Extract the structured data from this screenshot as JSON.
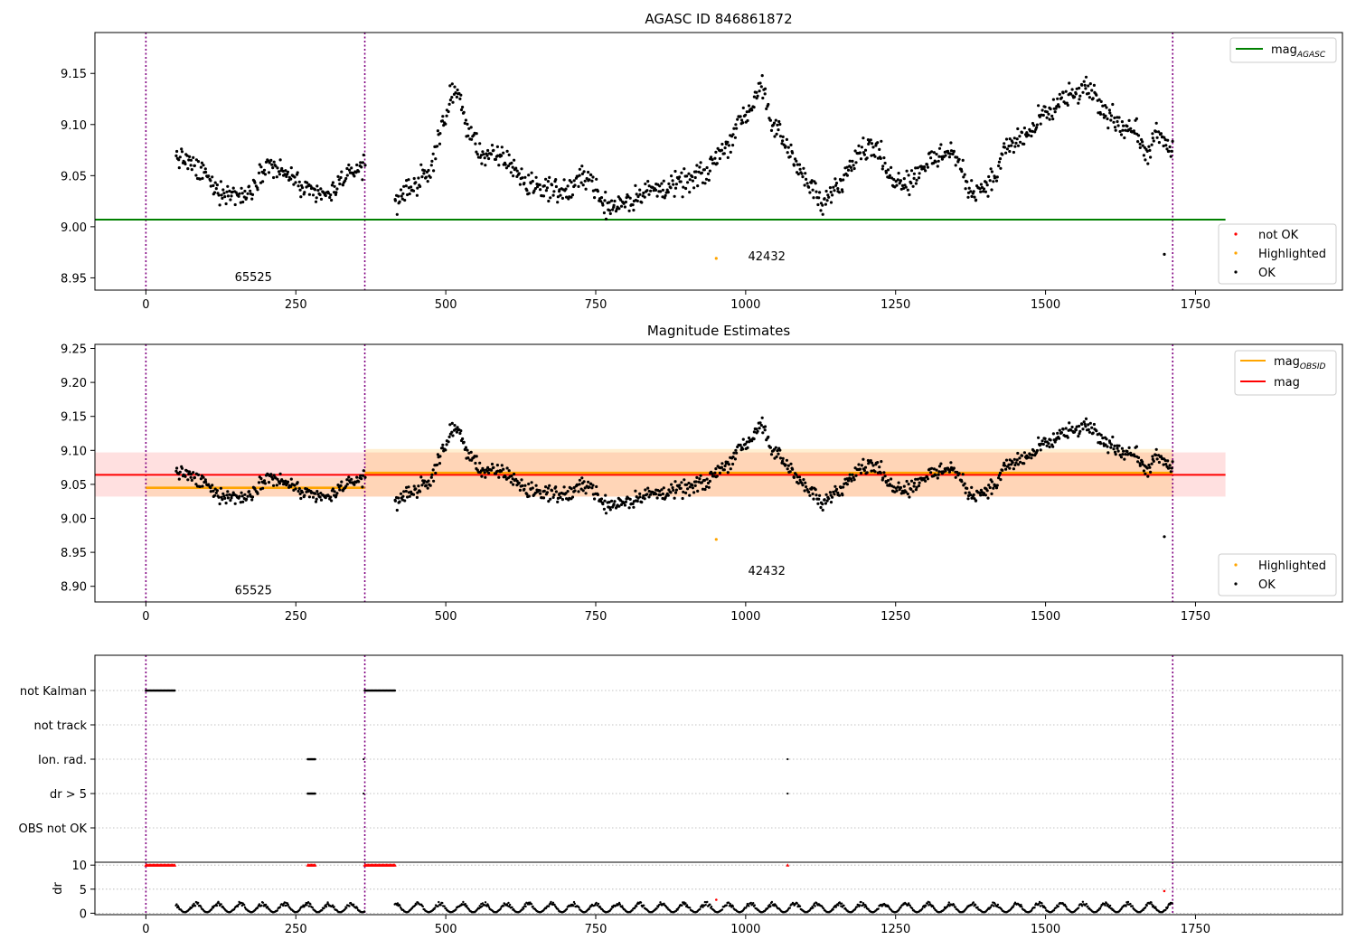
{
  "figure": {
    "background": "#ffffff"
  },
  "chart_data": [
    {
      "type": "scatter",
      "title": "AGASC ID 846861872",
      "xlabel": "",
      "ylabel": "",
      "xlim": [
        -85,
        1995
      ],
      "ylim": [
        8.938,
        9.19
      ],
      "xticks": [
        0,
        250,
        500,
        750,
        1000,
        1250,
        1500,
        1750
      ],
      "yticks": [
        8.95,
        9.0,
        9.05,
        9.1,
        9.15
      ],
      "vlines": [
        0,
        365,
        1712
      ],
      "hlines": [
        {
          "name": "mag_AGASC",
          "label_main": "mag",
          "label_sub": "AGASC",
          "y": 9.007,
          "x": [
            -85,
            1800
          ],
          "color": "#008000"
        }
      ],
      "annotations": [
        {
          "text": "65525",
          "x": 148,
          "y": 8.947
        },
        {
          "text": "42432",
          "x": 1004,
          "y": 8.967
        }
      ],
      "legends": [
        {
          "loc": "upper right",
          "entries": [
            {
              "kind": "line",
              "label_main": "mag",
              "label_sub": "AGASC",
              "color": "#008000"
            }
          ]
        },
        {
          "loc": "lower right",
          "entries": [
            {
              "kind": "dot",
              "label": "not OK",
              "color": "#ff0000"
            },
            {
              "kind": "dot",
              "label": "Highlighted",
              "color": "#ffa500"
            },
            {
              "kind": "dot",
              "label": "OK",
              "color": "#000000"
            }
          ]
        }
      ],
      "series": [
        {
          "name": "OK",
          "color": "#000000",
          "segments": [
            {
              "x": [
                50,
                365
              ],
              "knots": [
                [
                  50,
                  9.07
                ],
                [
                  90,
                  9.055
                ],
                [
                  120,
                  9.035
                ],
                [
                  160,
                  9.03
                ],
                [
                  205,
                  9.06
                ],
                [
                  240,
                  9.05
                ],
                [
                  265,
                  9.035
                ],
                [
                  300,
                  9.03
                ],
                [
                  335,
                  9.05
                ],
                [
                  365,
                  9.06
                ]
              ],
              "noise": 0.008,
              "n": 220
            },
            {
              "x": [
                415,
                1712
              ],
              "knots": [
                [
                  415,
                  9.025
                ],
                [
                  445,
                  9.04
                ],
                [
                  470,
                  9.05
                ],
                [
                  495,
                  9.1
                ],
                [
                  515,
                  9.135
                ],
                [
                  540,
                  9.09
                ],
                [
                  565,
                  9.07
                ],
                [
                  600,
                  9.065
                ],
                [
                  640,
                  9.04
                ],
                [
                  700,
                  9.035
                ],
                [
                  735,
                  9.05
                ],
                [
                  770,
                  9.02
                ],
                [
                  800,
                  9.025
                ],
                [
                  840,
                  9.035
                ],
                [
                  880,
                  9.04
                ],
                [
                  930,
                  9.05
                ],
                [
                  960,
                  9.075
                ],
                [
                  1000,
                  9.11
                ],
                [
                  1025,
                  9.135
                ],
                [
                  1045,
                  9.1
                ],
                [
                  1075,
                  9.075
                ],
                [
                  1100,
                  9.045
                ],
                [
                  1130,
                  9.02
                ],
                [
                  1150,
                  9.04
                ],
                [
                  1190,
                  9.075
                ],
                [
                  1215,
                  9.08
                ],
                [
                  1240,
                  9.05
                ],
                [
                  1270,
                  9.045
                ],
                [
                  1310,
                  9.065
                ],
                [
                  1340,
                  9.075
                ],
                [
                  1380,
                  9.035
                ],
                [
                  1410,
                  9.045
                ],
                [
                  1440,
                  9.08
                ],
                [
                  1470,
                  9.09
                ],
                [
                  1500,
                  9.11
                ],
                [
                  1535,
                  9.125
                ],
                [
                  1570,
                  9.135
                ],
                [
                  1600,
                  9.11
                ],
                [
                  1630,
                  9.1
                ],
                [
                  1650,
                  9.095
                ],
                [
                  1665,
                  9.07
                ],
                [
                  1690,
                  9.09
                ],
                [
                  1712,
                  9.07
                ]
              ],
              "noise": 0.009,
              "n": 920
            }
          ],
          "extra": [
            [
              1698,
              8.973
            ]
          ]
        },
        {
          "name": "Highlighted",
          "color": "#ffa500",
          "points": [
            [
              951,
              8.969
            ]
          ]
        }
      ]
    },
    {
      "type": "scatter",
      "title": "Magnitude Estimates",
      "xlabel": "",
      "ylabel": "",
      "xlim": [
        -85,
        1995
      ],
      "ylim": [
        8.877,
        9.256
      ],
      "xticks": [
        0,
        250,
        500,
        750,
        1000,
        1250,
        1500,
        1750
      ],
      "yticks": [
        8.9,
        8.95,
        9.0,
        9.05,
        9.1,
        9.15,
        9.2,
        9.25
      ],
      "vlines": [
        0,
        365,
        1712
      ],
      "hlines": [
        {
          "name": "mag",
          "label_main": "mag",
          "y": 9.064,
          "x": [
            -85,
            1800
          ],
          "color": "#ff0000",
          "band": [
            9.032,
            9.097
          ],
          "band_color": "#ff0000",
          "band_opacity": 0.12
        },
        {
          "name": "mag_OBSID_65525",
          "y": 9.045,
          "x": [
            0,
            365
          ],
          "color": "#ffa500",
          "band": [
            9.032,
            9.06
          ],
          "band_color": "#ffa500",
          "band_opacity": 0.15
        },
        {
          "name": "mag_OBSID_42432",
          "y": 9.067,
          "x": [
            365,
            1712
          ],
          "color": "#ffa500",
          "band": [
            9.032,
            9.102
          ],
          "band_color": "#ffa500",
          "band_opacity": 0.18
        }
      ],
      "annotations": [
        {
          "text": "65525",
          "x": 148,
          "y": 8.888
        },
        {
          "text": "42432",
          "x": 1004,
          "y": 8.917
        }
      ],
      "legends": [
        {
          "loc": "upper right",
          "entries": [
            {
              "kind": "line",
              "label_main": "mag",
              "label_sub": "OBSID",
              "color": "#ffa500"
            },
            {
              "kind": "line",
              "label_main": "mag",
              "label_sub": "",
              "color": "#ff0000"
            }
          ]
        },
        {
          "loc": "lower right",
          "entries": [
            {
              "kind": "dot",
              "label": "Highlighted",
              "color": "#ffa500"
            },
            {
              "kind": "dot",
              "label": "OK",
              "color": "#000000"
            }
          ]
        }
      ],
      "series": [
        {
          "name": "OK",
          "color": "#000000",
          "same_as_panel": 0,
          "extra": [
            [
              1698,
              8.973
            ]
          ]
        },
        {
          "name": "Highlighted",
          "color": "#ffa500",
          "points": [
            [
              951,
              8.969
            ]
          ]
        }
      ]
    },
    {
      "type": "scatter",
      "title": "",
      "xlabel": "",
      "ylabel": "",
      "xlim": [
        -85,
        1995
      ],
      "categories": [
        "not Kalman",
        "not track",
        "Ion. rad.",
        "dr > 5",
        "OBS not OK"
      ],
      "xticks": [
        0,
        250,
        500,
        750,
        1000,
        1250,
        1500,
        1750
      ],
      "vlines": [
        0,
        365,
        1712
      ],
      "grid": "horizontal dotted",
      "flag_ranges": [
        {
          "category": "not Kalman",
          "ranges": [
            [
              0,
              48
            ],
            [
              365,
              415
            ]
          ]
        },
        {
          "category": "Ion. rad.",
          "ranges": [
            [
              270,
              282
            ]
          ],
          "points": [
            363,
            1070
          ]
        },
        {
          "category": "dr > 5",
          "ranges": [
            [
              270,
              282
            ]
          ],
          "points": [
            363,
            1070
          ]
        }
      ]
    },
    {
      "type": "scatter",
      "title": "",
      "xlabel": "",
      "ylabel": "dr",
      "xlim": [
        -85,
        1995
      ],
      "ylim": [
        -0.3,
        10.6
      ],
      "yticks": [
        0,
        5,
        10
      ],
      "xticks": [
        0,
        250,
        500,
        750,
        1000,
        1250,
        1500,
        1750
      ],
      "vlines": [
        0,
        365,
        1712
      ],
      "grid": "horizontal dotted",
      "capped_value": 10,
      "capped_ranges": [
        [
          0,
          48
        ],
        [
          270,
          282
        ],
        [
          365,
          415
        ]
      ],
      "capped_points": [
        1070
      ],
      "red_points": [
        [
          951,
          2.8
        ],
        [
          1698,
          4.6
        ]
      ],
      "series": [
        {
          "name": "OK",
          "color": "#000000",
          "segments": [
            [
              50,
              365
            ],
            [
              415,
              1712
            ]
          ],
          "min": 0.2,
          "max": 2.4
        }
      ]
    }
  ]
}
